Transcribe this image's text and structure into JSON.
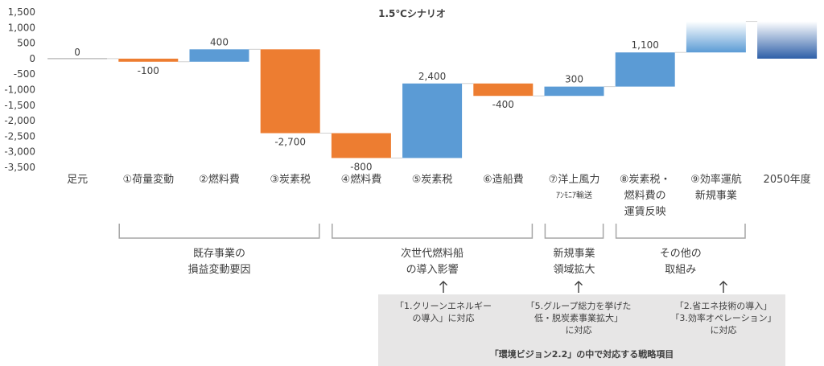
{
  "chart_data": {
    "type": "waterfall",
    "title": "1.5℃シナリオ",
    "ylim": [
      -3500,
      1500
    ],
    "yticks": [
      1500,
      1000,
      500,
      0,
      -500,
      -1000,
      -1500,
      -2000,
      -2500,
      -3000,
      -3500
    ],
    "ytick_labels": [
      "1,500",
      "1,000",
      "500",
      "0",
      "-500",
      "-1,000",
      "-1,500",
      "-2,000",
      "-2,500",
      "-3,000",
      "-3,500"
    ],
    "colors": {
      "increase": "#5b9bd5",
      "decrease": "#ed7d31",
      "baseline": "#a6a6a6",
      "gradient_top": "#ffffff",
      "gradient_bottom": "#2e5fa8"
    },
    "bars": [
      {
        "category": "足元",
        "type": "baseline",
        "start": 0,
        "end": 0,
        "label": "0"
      },
      {
        "category": "①荷量変動",
        "type": "decrease",
        "start": 0,
        "end": -100,
        "label": "-100"
      },
      {
        "category": "②燃料費",
        "type": "increase",
        "start": -100,
        "end": 300,
        "label": "400"
      },
      {
        "category": "③炭素税",
        "type": "decrease",
        "start": 300,
        "end": -2400,
        "label": "-2,700"
      },
      {
        "category": "④燃料費",
        "type": "decrease",
        "start": -2400,
        "end": -3200,
        "label": "-800"
      },
      {
        "category": "⑤炭素税",
        "type": "increase",
        "start": -3200,
        "end": -800,
        "label": "2,400"
      },
      {
        "category": "⑥造船費",
        "type": "decrease",
        "start": -800,
        "end": -1200,
        "label": "-400"
      },
      {
        "category": "⑦洋上風力 アンモニア輸送",
        "type": "increase",
        "start": -1200,
        "end": -900,
        "label": "300"
      },
      {
        "category": "⑧炭素税・燃料費の運賃反映",
        "type": "increase",
        "start": -900,
        "end": 200,
        "label": "1,100"
      },
      {
        "category": "⑨効率運航 新規事業",
        "type": "gradient_increase",
        "start": 200,
        "end": 1200,
        "label": ""
      },
      {
        "category": "2050年度",
        "type": "gradient_total",
        "start": 0,
        "end": 1200,
        "label": ""
      }
    ]
  },
  "xlabels": [
    {
      "lines": [
        "足元"
      ]
    },
    {
      "lines": [
        "①荷量変動"
      ]
    },
    {
      "lines": [
        "②燃料費"
      ]
    },
    {
      "lines": [
        "③炭素税"
      ]
    },
    {
      "lines": [
        "④燃料費"
      ]
    },
    {
      "lines": [
        "⑤炭素税"
      ]
    },
    {
      "lines": [
        "⑥造船費"
      ]
    },
    {
      "lines": [
        "⑦洋上風力",
        "ｱﾝﾓﾆｱ輸送"
      ]
    },
    {
      "lines": [
        "⑧炭素税・",
        "燃料費の",
        "運賃反映"
      ]
    },
    {
      "lines": [
        "⑨効率運航",
        "新規事業"
      ]
    },
    {
      "lines": [
        "2050年度"
      ]
    }
  ],
  "groups": [
    {
      "lines": [
        "既存事業の",
        "損益変動要因"
      ]
    },
    {
      "lines": [
        "次世代燃料船",
        "の導入影響"
      ]
    },
    {
      "lines": [
        "新規事業",
        "領域拡大"
      ]
    },
    {
      "lines": [
        "その他の",
        "取組み"
      ]
    }
  ],
  "strategy": {
    "notes": [
      {
        "lines": [
          "「1.クリーンエネルギー",
          "の導入」に対応"
        ]
      },
      {
        "lines": [
          "「5.グループ総力を挙げた",
          "低・脱炭素事業拡大」",
          "に対応"
        ]
      },
      {
        "lines": [
          "「2.省エネ技術の導入」",
          "「3.効率オペレーション」",
          "に対応"
        ]
      }
    ],
    "caption": "「環境ビジョン2.2」の中で対応する戦略項目"
  }
}
